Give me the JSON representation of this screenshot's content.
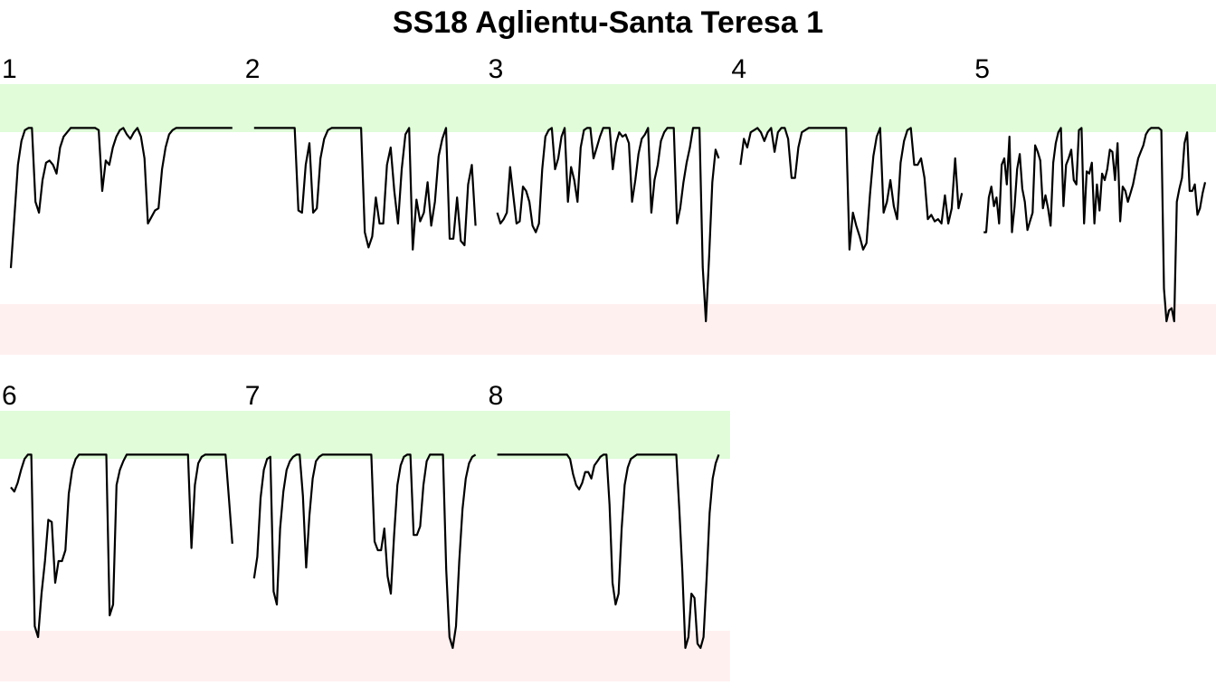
{
  "title": "SS18 Aglientu-Santa Teresa 1",
  "colors": {
    "high_band": "#E0FCD9",
    "low_band": "#FFF0F0",
    "line": "#000000"
  },
  "chart_data": {
    "type": "line",
    "title": "SS18 Aglientu-Santa Teresa 1",
    "ylim": [
      0,
      1
    ],
    "band_high": [
      0.82,
      1.0
    ],
    "band_low": [
      0.0,
      0.23
    ],
    "grid": false,
    "legend": "none",
    "panels": [
      {
        "label": "1",
        "values": [
          0.245,
          0.48,
          0.72,
          0.83,
          0.88,
          0.89,
          0.89,
          0.55,
          0.5,
          0.65,
          0.73,
          0.74,
          0.72,
          0.68,
          0.8,
          0.85,
          0.87,
          0.89,
          0.89,
          0.89,
          0.89,
          0.89,
          0.89,
          0.89,
          0.89,
          0.88,
          0.6,
          0.74,
          0.72,
          0.8,
          0.85,
          0.88,
          0.89,
          0.86,
          0.84,
          0.87,
          0.89,
          0.85,
          0.75,
          0.45,
          0.48,
          0.51,
          0.52,
          0.7,
          0.8,
          0.86,
          0.88,
          0.89,
          0.89,
          0.89,
          0.89,
          0.89,
          0.89,
          0.89,
          0.89,
          0.89,
          0.89,
          0.89,
          0.89,
          0.89,
          0.89,
          0.89,
          0.89,
          0.89
        ]
      },
      {
        "label": "2",
        "values": [
          0.89,
          0.89,
          0.89,
          0.89,
          0.89,
          0.89,
          0.89,
          0.89,
          0.89,
          0.89,
          0.89,
          0.89,
          0.51,
          0.5,
          0.72,
          0.82,
          0.5,
          0.52,
          0.75,
          0.84,
          0.88,
          0.89,
          0.89,
          0.89,
          0.89,
          0.89,
          0.89,
          0.89,
          0.89,
          0.89,
          0.41,
          0.34,
          0.39,
          0.57,
          0.45,
          0.45,
          0.72,
          0.8,
          0.6,
          0.45,
          0.7,
          0.86,
          0.89,
          0.33,
          0.56,
          0.46,
          0.5,
          0.64,
          0.44,
          0.55,
          0.76,
          0.84,
          0.89,
          0.38,
          0.38,
          0.57,
          0.37,
          0.35,
          0.63,
          0.72,
          0.44
        ]
      },
      {
        "label": "3",
        "values": [
          0.5,
          0.45,
          0.47,
          0.5,
          0.71,
          0.58,
          0.45,
          0.46,
          0.62,
          0.6,
          0.55,
          0.44,
          0.41,
          0.45,
          0.7,
          0.85,
          0.88,
          0.89,
          0.7,
          0.75,
          0.85,
          0.89,
          0.55,
          0.71,
          0.65,
          0.55,
          0.8,
          0.88,
          0.89,
          0.89,
          0.75,
          0.8,
          0.85,
          0.89,
          0.89,
          0.89,
          0.7,
          0.82,
          0.87,
          0.85,
          0.86,
          0.82,
          0.55,
          0.65,
          0.77,
          0.84,
          0.86,
          0.89,
          0.5,
          0.65,
          0.72,
          0.83,
          0.87,
          0.89,
          0.89,
          0.89,
          0.45,
          0.52,
          0.64,
          0.73,
          0.8,
          0.89,
          0.89,
          0.89,
          0.25,
          0.0,
          0.3,
          0.64,
          0.79,
          0.75
        ]
      },
      {
        "label": "4",
        "values": [
          0.72,
          0.84,
          0.8,
          0.87,
          0.88,
          0.89,
          0.87,
          0.83,
          0.87,
          0.89,
          0.78,
          0.87,
          0.89,
          0.89,
          0.84,
          0.66,
          0.66,
          0.8,
          0.87,
          0.88,
          0.89,
          0.89,
          0.89,
          0.89,
          0.89,
          0.89,
          0.89,
          0.89,
          0.89,
          0.89,
          0.89,
          0.89,
          0.33,
          0.5,
          0.44,
          0.39,
          0.33,
          0.36,
          0.58,
          0.76,
          0.85,
          0.89,
          0.5,
          0.55,
          0.65,
          0.53,
          0.47,
          0.73,
          0.83,
          0.88,
          0.89,
          0.72,
          0.72,
          0.75,
          0.66,
          0.47,
          0.49,
          0.46,
          0.47,
          0.45,
          0.58,
          0.45,
          0.52,
          0.75,
          0.52,
          0.59
        ]
      },
      {
        "label": "5",
        "values": [
          0.41,
          0.41,
          0.57,
          0.62,
          0.53,
          0.57,
          0.45,
          0.72,
          0.75,
          0.63,
          0.85,
          0.41,
          0.53,
          0.7,
          0.77,
          0.61,
          0.55,
          0.42,
          0.46,
          0.5,
          0.81,
          0.78,
          0.74,
          0.52,
          0.58,
          0.52,
          0.44,
          0.73,
          0.82,
          0.87,
          0.89,
          0.53,
          0.72,
          0.75,
          0.79,
          0.65,
          0.63,
          0.88,
          0.89,
          0.45,
          0.69,
          0.68,
          0.73,
          0.45,
          0.63,
          0.51,
          0.68,
          0.65,
          0.7,
          0.79,
          0.78,
          0.65,
          0.82,
          0.46,
          0.62,
          0.6,
          0.55,
          0.59,
          0.63,
          0.69,
          0.75,
          0.78,
          0.81,
          0.86,
          0.88,
          0.89,
          0.89,
          0.89,
          0.89,
          0.88,
          0.15,
          0.0,
          0.05,
          0.06,
          0.0,
          0.55,
          0.61,
          0.66,
          0.82,
          0.87,
          0.6,
          0.6,
          0.63,
          0.49,
          0.52,
          0.59,
          0.64
        ]
      },
      {
        "label": "6",
        "values": [
          0.74,
          0.72,
          0.76,
          0.82,
          0.87,
          0.89,
          0.89,
          0.1,
          0.05,
          0.25,
          0.4,
          0.59,
          0.58,
          0.3,
          0.4,
          0.4,
          0.45,
          0.71,
          0.82,
          0.87,
          0.89,
          0.89,
          0.89,
          0.89,
          0.89,
          0.89,
          0.89,
          0.89,
          0.89,
          0.15,
          0.2,
          0.75,
          0.82,
          0.86,
          0.89,
          0.89,
          0.89,
          0.89,
          0.89,
          0.89,
          0.89,
          0.89,
          0.89,
          0.89,
          0.89,
          0.89,
          0.89,
          0.89,
          0.89,
          0.89,
          0.89,
          0.89,
          0.89,
          0.46,
          0.75,
          0.85,
          0.88,
          0.89,
          0.89,
          0.89,
          0.89,
          0.89,
          0.89,
          0.89,
          0.69,
          0.48
        ]
      },
      {
        "label": "7",
        "values": [
          0.32,
          0.42,
          0.69,
          0.82,
          0.87,
          0.88,
          0.26,
          0.2,
          0.55,
          0.72,
          0.82,
          0.86,
          0.88,
          0.89,
          0.89,
          0.7,
          0.37,
          0.61,
          0.78,
          0.86,
          0.88,
          0.89,
          0.89,
          0.89,
          0.89,
          0.89,
          0.89,
          0.89,
          0.89,
          0.89,
          0.89,
          0.89,
          0.89,
          0.89,
          0.89,
          0.89,
          0.89,
          0.49,
          0.45,
          0.45,
          0.55,
          0.33,
          0.25,
          0.52,
          0.75,
          0.84,
          0.88,
          0.89,
          0.89,
          0.52,
          0.52,
          0.56,
          0.75,
          0.86,
          0.89,
          0.89,
          0.89,
          0.89,
          0.89,
          0.36,
          0.05,
          0.0,
          0.1,
          0.4,
          0.64,
          0.78,
          0.85,
          0.88,
          0.89
        ]
      },
      {
        "label": "8",
        "values": [
          0.89,
          0.89,
          0.89,
          0.89,
          0.89,
          0.89,
          0.89,
          0.89,
          0.89,
          0.89,
          0.89,
          0.89,
          0.89,
          0.89,
          0.89,
          0.89,
          0.89,
          0.89,
          0.89,
          0.89,
          0.89,
          0.89,
          0.89,
          0.89,
          0.87,
          0.8,
          0.75,
          0.73,
          0.76,
          0.81,
          0.81,
          0.78,
          0.84,
          0.86,
          0.88,
          0.89,
          0.89,
          0.66,
          0.3,
          0.2,
          0.25,
          0.55,
          0.75,
          0.83,
          0.87,
          0.88,
          0.89,
          0.89,
          0.89,
          0.89,
          0.89,
          0.89,
          0.89,
          0.89,
          0.89,
          0.89,
          0.89,
          0.89,
          0.89,
          0.89,
          0.64,
          0.35,
          0.0,
          0.05,
          0.25,
          0.23,
          0.02,
          0.0,
          0.05,
          0.32,
          0.62,
          0.78,
          0.85,
          0.89
        ]
      }
    ]
  }
}
